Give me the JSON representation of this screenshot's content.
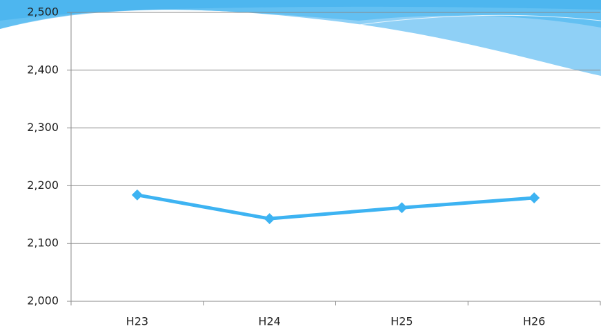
{
  "chart_data": {
    "type": "line",
    "categories": [
      "H23",
      "H24",
      "H25",
      "H26"
    ],
    "series": [
      {
        "color": "#3db3f2",
        "values": [
          2184,
          2143,
          2162,
          2179
        ]
      }
    ],
    "ylim": [
      2000,
      2500
    ],
    "yticks": [
      {
        "value": 2000,
        "label": "2,000"
      },
      {
        "value": 2100,
        "label": "2,100"
      },
      {
        "value": 2200,
        "label": "2,200"
      },
      {
        "value": 2300,
        "label": "2,300"
      },
      {
        "value": 2400,
        "label": "2,400"
      },
      {
        "value": 2500,
        "label": "2,500"
      }
    ],
    "grid": true
  }
}
